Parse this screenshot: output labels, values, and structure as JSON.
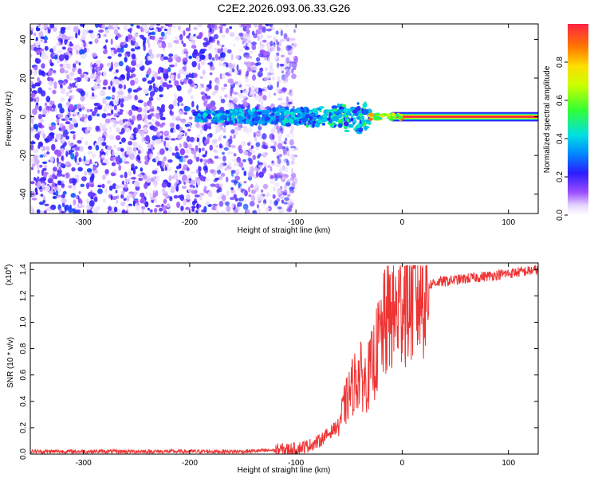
{
  "title": "C2E2.2026.093.06.33.G26",
  "chart_data": [
    {
      "type": "heatmap",
      "name": "spectrogram",
      "xlabel": "Height of straight line (km)",
      "ylabel": "Frequency (Hz)",
      "xlim": [
        -350,
        128
      ],
      "ylim": [
        -50,
        48
      ],
      "xticks": [
        "-300",
        "-200",
        "-100",
        "0",
        "100"
      ],
      "xtick_values": [
        -300,
        -200,
        -100,
        0,
        100
      ],
      "yticks": [
        "-40",
        "-20",
        "0",
        "20",
        "40"
      ],
      "ytick_values": [
        -40,
        -20,
        0,
        20,
        40
      ],
      "colorbar": {
        "label": "Normalized spectral amplitude",
        "range": [
          0,
          1
        ],
        "ticks": [
          "0.0",
          "0.2",
          "0.4",
          "0.6",
          "0.8"
        ],
        "tick_values": [
          0.0,
          0.2,
          0.4,
          0.6,
          0.8
        ]
      },
      "regions": [
        {
          "desc": "broadband noise",
          "x": [
            -350,
            -100
          ],
          "y": [
            -50,
            48
          ],
          "amplitude": 0.1
        },
        {
          "desc": "signal band onset",
          "x": [
            -195,
            -30
          ],
          "y": [
            -8,
            8
          ],
          "amplitude": 0.35
        },
        {
          "desc": "strong carrier",
          "x": [
            -30,
            128
          ],
          "y": [
            -1,
            1
          ],
          "amplitude": 1.0
        }
      ],
      "carrier_frequency": 0
    },
    {
      "type": "line",
      "name": "snr",
      "xlabel": "Height of straight line (km)",
      "ylabel": "SNR (10 * v/v)",
      "scale_label": "(x10",
      "scale_exp": "4",
      "xlim": [
        -350,
        128
      ],
      "ylim": [
        0,
        1.45
      ],
      "xticks": [
        "-300",
        "-200",
        "-100",
        "0",
        "100"
      ],
      "xtick_values": [
        -300,
        -200,
        -100,
        0,
        100
      ],
      "yticks": [
        "0.0",
        "0.2",
        "0.4",
        "0.6",
        "0.8",
        "1.0",
        "1.2",
        "1.4"
      ],
      "ytick_values": [
        0.0,
        0.2,
        0.4,
        0.6,
        0.8,
        1.0,
        1.2,
        1.4
      ],
      "color": "#ee3333",
      "series": [
        {
          "name": "SNR",
          "x": [
            -350,
            -300,
            -250,
            -200,
            -150,
            -120,
            -100,
            -90,
            -80,
            -70,
            -60,
            -55,
            -50,
            -45,
            -40,
            -35,
            -30,
            -25,
            -20,
            -15,
            -10,
            -5,
            0,
            10,
            20,
            25,
            30,
            40,
            50,
            60,
            70,
            80,
            90,
            100,
            110,
            120,
            128
          ],
          "y": [
            0.02,
            0.02,
            0.02,
            0.02,
            0.02,
            0.03,
            0.04,
            0.06,
            0.09,
            0.15,
            0.22,
            0.35,
            0.45,
            0.55,
            0.6,
            0.55,
            0.62,
            0.75,
            0.9,
            1.0,
            1.08,
            1.05,
            1.18,
            1.2,
            1.25,
            1.28,
            1.3,
            1.31,
            1.32,
            1.33,
            1.34,
            1.35,
            1.36,
            1.37,
            1.38,
            1.39,
            1.4
          ]
        }
      ]
    }
  ]
}
